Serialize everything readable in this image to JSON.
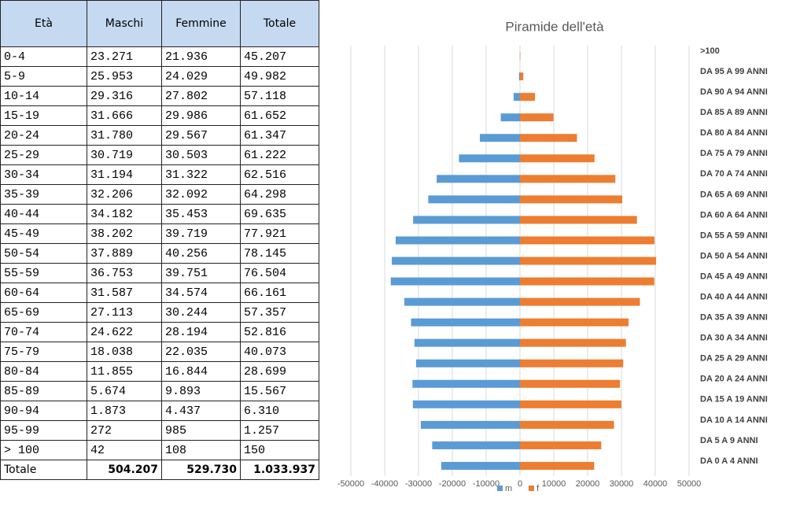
{
  "table": {
    "header": [
      "Età",
      "Maschi",
      "Femmine",
      "Totale"
    ],
    "rows": [
      [
        "0-4",
        "23.271",
        "21.936",
        "45.207"
      ],
      [
        "5-9",
        "25.953",
        "24.029",
        "49.982"
      ],
      [
        "10-14",
        "29.316",
        "27.802",
        "57.118"
      ],
      [
        "15-19",
        "31.666",
        "29.986",
        "61.652"
      ],
      [
        "20-24",
        "31.780",
        "29.567",
        "61.347"
      ],
      [
        "25-29",
        "30.719",
        "30.503",
        "61.222"
      ],
      [
        "30-34",
        "31.194",
        "31.322",
        "62.516"
      ],
      [
        "35-39",
        "32.206",
        "32.092",
        "64.298"
      ],
      [
        "40-44",
        "34.182",
        "35.453",
        "69.635"
      ],
      [
        "45-49",
        "38.202",
        "39.719",
        "77.921"
      ],
      [
        "50-54",
        "37.889",
        "40.256",
        "78.145"
      ],
      [
        "55-59",
        "36.753",
        "39.751",
        "76.504"
      ],
      [
        "60-64",
        "31.587",
        "34.574",
        "66.161"
      ],
      [
        "65-69",
        "27.113",
        "30.244",
        "57.357"
      ],
      [
        "70-74",
        "24.622",
        "28.194",
        "52.816"
      ],
      [
        "75-79",
        "18.038",
        "22.035",
        "40.073"
      ],
      [
        "80-84",
        "11.855",
        "16.844",
        "28.699"
      ],
      [
        "85-89",
        "5.674",
        "9.893",
        "15.567"
      ],
      [
        "90-94",
        "1.873",
        "4.437",
        "6.310"
      ],
      [
        "95-99",
        "272",
        "985",
        "1.257"
      ],
      [
        "> 100",
        "42",
        "108",
        "150"
      ]
    ],
    "total": [
      "Totale",
      "504.207",
      "529.730",
      "1.033.937"
    ]
  },
  "chart_data": {
    "type": "bar",
    "orientation": "horizontal",
    "title": "Piramide dell'età",
    "categories": [
      ">100",
      "DA 95 A 99 ANNI",
      "DA 90 A 94 ANNI",
      "DA 85 A 89 ANNI",
      "DA 80 A 84 ANNI",
      "DA 75 A 79 ANNI",
      "DA 70 A 74 ANNI",
      "DA 65 A 69 ANNI",
      "DA 60 A 64 ANNI",
      "DA 55 A 59 ANNI",
      "DA 50 A 54 ANNI",
      "DA 45 A 49 ANNI",
      "DA 40 A 44 ANNI",
      "DA 35 A 39 ANNI",
      "DA 30 A 34 ANNI",
      "DA 25 A 29 ANNI",
      "DA 20 A 24 ANNI",
      "DA 15 A 19 ANNI",
      "DA 10 A 14 ANNI",
      "DA 5 A 9 ANNI",
      "DA 0 A 4 ANNI"
    ],
    "series": [
      {
        "name": "m",
        "color": "#5b9bd5",
        "values": [
          -42,
          -272,
          -1873,
          -5674,
          -11855,
          -18038,
          -24622,
          -27113,
          -31587,
          -36753,
          -37889,
          -38202,
          -34182,
          -32206,
          -31194,
          -30719,
          -31780,
          -31666,
          -29316,
          -25953,
          -23271
        ]
      },
      {
        "name": "f",
        "color": "#ed7d31",
        "values": [
          108,
          985,
          4437,
          9893,
          16844,
          22035,
          28194,
          30244,
          34574,
          39751,
          40256,
          39719,
          35453,
          32092,
          31322,
          30503,
          29567,
          29986,
          27802,
          24029,
          21936
        ]
      }
    ],
    "xlim": [
      -50000,
      50000
    ],
    "xticks": [
      -50000,
      -40000,
      -30000,
      -20000,
      -10000,
      0,
      10000,
      20000,
      30000,
      40000,
      50000
    ],
    "grid": true,
    "legend": "bottom"
  }
}
